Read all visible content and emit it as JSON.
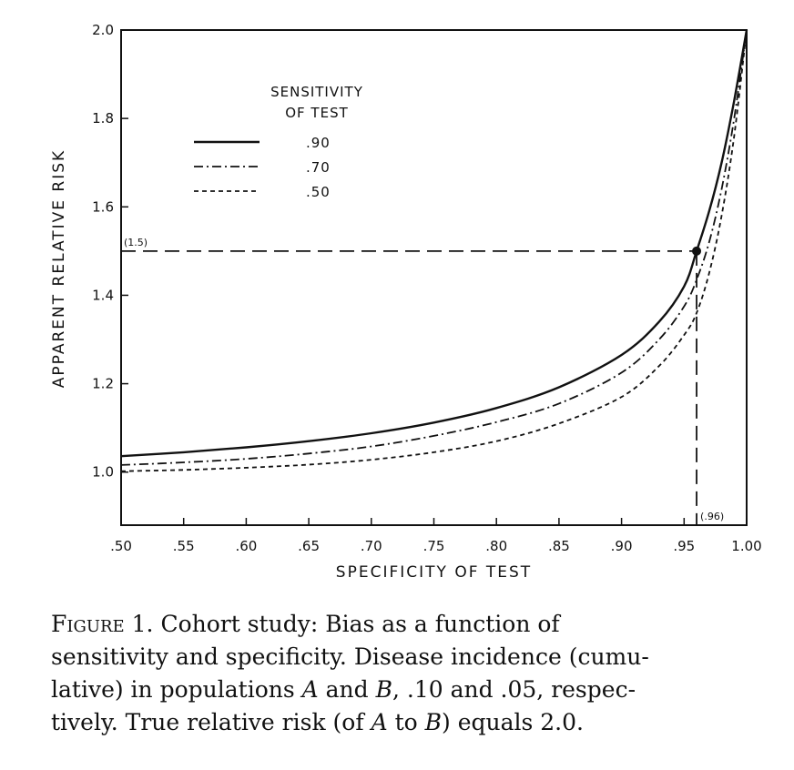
{
  "chart_data": {
    "type": "line",
    "xlabel": "SPECIFICITY OF TEST",
    "ylabel": "APPARENT RELATIVE RISK",
    "xlim": [
      0.5,
      1.0
    ],
    "ylim": [
      0.88,
      2.0
    ],
    "x_ticks": [
      ".50",
      ".55",
      ".60",
      ".65",
      ".70",
      ".75",
      ".80",
      ".85",
      ".90",
      ".95",
      "1.00"
    ],
    "y_ticks": [
      "1.0",
      "1.2",
      "1.4",
      "1.6",
      "1.8",
      "2.0"
    ],
    "legend": {
      "title_line1": "SENSITIVITY",
      "title_line2": "OF TEST",
      "placement": "top-left"
    },
    "series": [
      {
        "name": ".90",
        "style": "solid",
        "x": [
          0.5,
          0.55,
          0.6,
          0.65,
          0.7,
          0.75,
          0.8,
          0.85,
          0.9,
          0.93,
          0.95,
          0.96,
          0.97,
          0.98,
          0.99,
          1.0
        ],
        "y": [
          1.036,
          1.045,
          1.056,
          1.07,
          1.088,
          1.112,
          1.145,
          1.192,
          1.265,
          1.34,
          1.42,
          1.5,
          1.59,
          1.7,
          1.84,
          2.0
        ]
      },
      {
        "name": ".70",
        "style": "dashdot",
        "x": [
          0.5,
          0.55,
          0.6,
          0.65,
          0.7,
          0.75,
          0.8,
          0.85,
          0.9,
          0.93,
          0.95,
          0.96,
          0.97,
          0.98,
          0.99,
          1.0
        ],
        "y": [
          1.016,
          1.022,
          1.03,
          1.042,
          1.058,
          1.082,
          1.113,
          1.155,
          1.225,
          1.3,
          1.375,
          1.435,
          1.52,
          1.64,
          1.8,
          2.0
        ]
      },
      {
        "name": ".50",
        "style": "dashed",
        "x": [
          0.5,
          0.55,
          0.6,
          0.65,
          0.7,
          0.75,
          0.8,
          0.85,
          0.9,
          0.93,
          0.95,
          0.96,
          0.97,
          0.98,
          0.99,
          1.0
        ],
        "y": [
          1.002,
          1.005,
          1.01,
          1.017,
          1.028,
          1.045,
          1.07,
          1.11,
          1.17,
          1.24,
          1.31,
          1.36,
          1.45,
          1.58,
          1.76,
          2.0
        ]
      }
    ],
    "marker": {
      "x": 0.96,
      "y": 1.5
    },
    "annotations": [
      {
        "text": "(1.5)"
      },
      {
        "text": "(.96)"
      }
    ]
  },
  "caption": {
    "label": "Figure 1.",
    "line1": " Cohort study: Bias as a function of",
    "line2": "sensitivity and specificity. Disease incidence (cumu-",
    "line3a": "lative) in populations ",
    "sym_a": "A",
    "line3b": " and ",
    "sym_b": "B",
    "line3c": ", .10 and .05, respec-",
    "line4a": "tively. True relative risk (of ",
    "sym_a2": "A",
    "line4b": " to ",
    "sym_b2": "B",
    "line4c": ") equals 2.0."
  }
}
